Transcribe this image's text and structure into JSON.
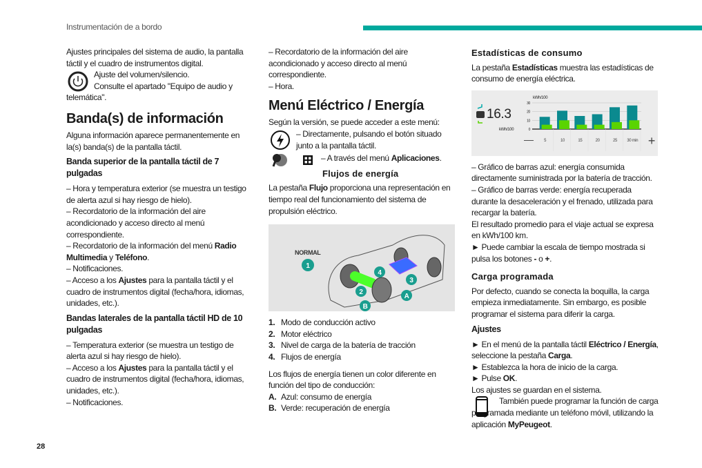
{
  "header": {
    "title": "Instrumentación de a bordo",
    "page_number": "28",
    "accent": "#00a99d"
  },
  "col1": {
    "intro": "Ajustes principales del sistema de audio, la pantalla táctil y el cuadro de instrumentos digital.",
    "volume_1": "Ajuste del volumen/silencio.",
    "volume_2": "Consulte el apartado \"Equipo de audio y telemática\".",
    "h_bandas": "Banda(s) de información",
    "bandas_intro": "Alguna información aparece permanentemente en la(s) banda(s) de la pantalla táctil.",
    "h_superior": "Banda superior de la pantalla táctil de 7 pulgadas",
    "s1": "– Hora y temperatura exterior (se muestra un testigo de alerta azul si hay riesgo de hielo).",
    "s2": "– Recordatorio de la información del aire acondicionado y acceso directo al menú correspondiente.",
    "s3a": "– Recordatorio de la información del menú ",
    "s3b": "Radio Multimedia",
    "s3c": " y ",
    "s3d": "Teléfono",
    "s3e": ".",
    "s4": "– Notificaciones.",
    "s5a": "– Acceso a los ",
    "s5b": "Ajustes",
    "s5c": " para la pantalla táctil y el cuadro de instrumentos digital (fecha/hora, idiomas, unidades, etc.).",
    "h_laterales": "Bandas laterales de la pantalla táctil HD de 10 pulgadas",
    "l1": "– Temperatura exterior (se muestra un testigo de alerta azul si hay riesgo de hielo).",
    "l2a": "– Acceso a los ",
    "l2b": "Ajustes",
    "l2c": " para la pantalla táctil y el cuadro de instrumentos digital (fecha/hora, idiomas, unidades, etc.).",
    "l3": "– Notificaciones."
  },
  "col2": {
    "m1": "– Recordatorio de la información del aire acondicionado y acceso directo al menú correspondiente.",
    "m2": "– Hora.",
    "h_menu": "Menú Eléctrico / Energía",
    "version": "Según la versión, se puede acceder a este menú:",
    "direct": "– Directamente, pulsando el botón situado junto a la pantalla táctil.",
    "apps_a": "– A través del menú ",
    "apps_b": "Aplicaciones",
    "apps_c": ".",
    "h_flujos": "Flujos de energía",
    "flujo_a": "La pestaña ",
    "flujo_b": "Flujo",
    "flujo_c": " proporciona una representación en tiempo real del funcionamiento del sistema de propulsión eléctrico.",
    "figure": {
      "mode": "NORMAL",
      "markers": [
        "1",
        "2",
        "3",
        "4",
        "A",
        "B"
      ]
    },
    "list": [
      {
        "n": "1.",
        "t": "Modo de conducción activo"
      },
      {
        "n": "2.",
        "t": "Motor eléctrico"
      },
      {
        "n": "3.",
        "t": "Nivel de carga de la batería de tracción"
      },
      {
        "n": "4.",
        "t": "Flujos de energía"
      }
    ],
    "colors_intro": "Los flujos de energía tienen un color diferente en función del tipo de conducción:",
    "colA_n": "A.",
    "colA_t": "Azul: consumo de energía",
    "colB_n": "B.",
    "colB_t": "Verde: recuperación de energía"
  },
  "col3": {
    "h_estad": "Estadísticas de consumo",
    "estad_a": "La pestaña ",
    "estad_b": "Estadísticas",
    "estad_c": " muestra las estadísticas de consumo de energía eléctrica.",
    "b1": "– Gráfico de barras azul: energía consumida directamente suministrada por la batería de tracción.",
    "b2": "– Gráfico de barras verde: energía recuperada durante la desaceleración y el frenado, utilizada para recargar la batería.",
    "b3": "El resultado promedio para el viaje actual se expresa en kWh/100 km.",
    "b4a": "► Puede cambiar la escala de tiempo mostrada si pulsa los botones ",
    "b4b": "-",
    "b4c": " o ",
    "b4d": "+",
    "b4e": ".",
    "h_carga": "Carga programada",
    "carga": "Por defecto, cuando se conecta la boquilla, la carga empieza inmediatamente. Sin embargo, es posible programar el sistema para diferir la carga.",
    "h_ajustes": "Ajustes",
    "a1a": "► En el menú de la pantalla táctil ",
    "a1b": "Eléctrico / Energía",
    "a1c": ", seleccione la pestaña ",
    "a1d": "Carga",
    "a1e": ".",
    "a2": "► Establezca la hora de inicio de la carga.",
    "a3a": "► Pulse ",
    "a3b": "OK",
    "a3c": ".",
    "a4": "Los ajustes se guardan en el sistema.",
    "phone_a": "También puede programar la función de carga programada mediante un teléfono móvil, utilizando la aplicación ",
    "phone_b": "MyPeugeot",
    "phone_c": "."
  },
  "chart_data": {
    "type": "bar",
    "display_value": "16.3",
    "display_unit": "kWh/100",
    "ylabel": "kWh/100",
    "categories": [
      "5",
      "10",
      "15",
      "20",
      "25",
      "30 min"
    ],
    "yticks": [
      "0",
      "10",
      "20",
      "30"
    ],
    "ylim": [
      0,
      30
    ],
    "series": [
      {
        "values": [
          14,
          21,
          15,
          17,
          25,
          27
        ],
        "color": "#0b8a8f"
      },
      {
        "values": [
          5,
          10,
          5,
          5,
          8,
          10
        ],
        "color": "#5ad400"
      }
    ],
    "minus_label": "—",
    "plus_label": "+"
  }
}
